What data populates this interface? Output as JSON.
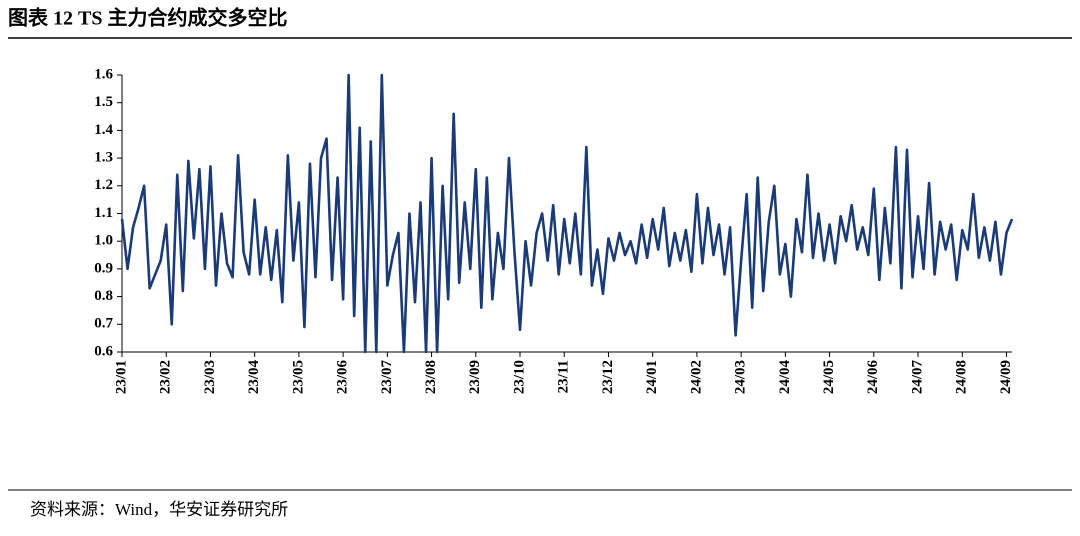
{
  "chart_data": {
    "type": "line",
    "title": "图表 12 TS 主力合约成交多空比",
    "source": "资料来源：Wind，华安证券研究所",
    "color": "#1b3a78",
    "ylim": [
      0.6,
      1.6
    ],
    "yticks": [
      0.6,
      0.7,
      0.8,
      0.9,
      {
        "value": 1,
        "label": "1.0"
      },
      1.1,
      1.2,
      1.3,
      1.4,
      1.5,
      1.6
    ],
    "categories": [
      "23/01",
      null,
      null,
      null,
      null,
      null,
      null,
      null,
      "23/02",
      null,
      null,
      null,
      null,
      null,
      null,
      null,
      "23/03",
      null,
      null,
      null,
      null,
      null,
      null,
      null,
      "23/04",
      null,
      null,
      null,
      null,
      null,
      null,
      null,
      "23/05",
      null,
      null,
      null,
      null,
      null,
      null,
      null,
      "23/06",
      null,
      null,
      null,
      null,
      null,
      null,
      null,
      "23/07",
      null,
      null,
      null,
      null,
      null,
      null,
      null,
      "23/08",
      null,
      null,
      null,
      null,
      null,
      null,
      null,
      "23/09",
      null,
      null,
      null,
      null,
      null,
      null,
      null,
      "23/10",
      null,
      null,
      null,
      null,
      null,
      null,
      null,
      "23/11",
      null,
      null,
      null,
      null,
      null,
      null,
      null,
      "23/12",
      null,
      null,
      null,
      null,
      null,
      null,
      null,
      "24/01",
      null,
      null,
      null,
      null,
      null,
      null,
      null,
      "24/02",
      null,
      null,
      null,
      null,
      null,
      null,
      null,
      "24/03",
      null,
      null,
      null,
      null,
      null,
      null,
      null,
      "24/04",
      null,
      null,
      null,
      null,
      null,
      null,
      null,
      "24/05",
      null,
      null,
      null,
      null,
      null,
      null,
      null,
      "24/06",
      null,
      null,
      null,
      null,
      null,
      null,
      null,
      "24/07",
      null,
      null,
      null,
      null,
      null,
      null,
      null,
      "24/08",
      null,
      null,
      null,
      null,
      null,
      null,
      null,
      "24/09",
      null
    ],
    "values": [
      1.08,
      0.9,
      1.05,
      1.12,
      1.2,
      0.83,
      0.88,
      0.93,
      1.06,
      0.7,
      1.24,
      0.82,
      1.29,
      1.01,
      1.26,
      0.9,
      1.27,
      0.84,
      1.1,
      0.92,
      0.87,
      1.31,
      0.96,
      0.88,
      1.15,
      0.88,
      1.05,
      0.86,
      1.04,
      0.78,
      1.31,
      0.93,
      1.14,
      0.69,
      1.28,
      0.87,
      1.3,
      1.37,
      0.86,
      1.23,
      0.79,
      1.6,
      0.73,
      1.41,
      0.6,
      1.36,
      0.6,
      1.6,
      0.84,
      0.95,
      1.03,
      0.6,
      1.1,
      0.78,
      1.14,
      0.6,
      1.3,
      0.6,
      1.2,
      0.79,
      1.46,
      0.85,
      1.14,
      0.9,
      1.26,
      0.76,
      1.23,
      0.79,
      1.03,
      0.9,
      1.3,
      0.96,
      0.68,
      1.0,
      0.84,
      1.03,
      1.1,
      0.93,
      1.13,
      0.88,
      1.08,
      0.92,
      1.1,
      0.88,
      1.34,
      0.84,
      0.97,
      0.81,
      1.01,
      0.93,
      1.03,
      0.95,
      1.0,
      0.92,
      1.06,
      0.94,
      1.08,
      0.97,
      1.12,
      0.91,
      1.03,
      0.93,
      1.04,
      0.89,
      1.17,
      0.92,
      1.12,
      0.95,
      1.06,
      0.88,
      1.05,
      0.66,
      0.93,
      1.17,
      0.76,
      1.23,
      0.82,
      1.07,
      1.2,
      0.88,
      0.99,
      0.8,
      1.08,
      0.96,
      1.24,
      0.94,
      1.1,
      0.93,
      1.06,
      0.92,
      1.09,
      1.0,
      1.13,
      0.97,
      1.05,
      0.95,
      1.19,
      0.86,
      1.12,
      0.92,
      1.34,
      0.83,
      1.33,
      0.87,
      1.09,
      0.9,
      1.21,
      0.88,
      1.07,
      0.97,
      1.06,
      0.86,
      1.04,
      0.97,
      1.17,
      0.94,
      1.05,
      0.93,
      1.07,
      0.88,
      1.03,
      1.08
    ]
  }
}
